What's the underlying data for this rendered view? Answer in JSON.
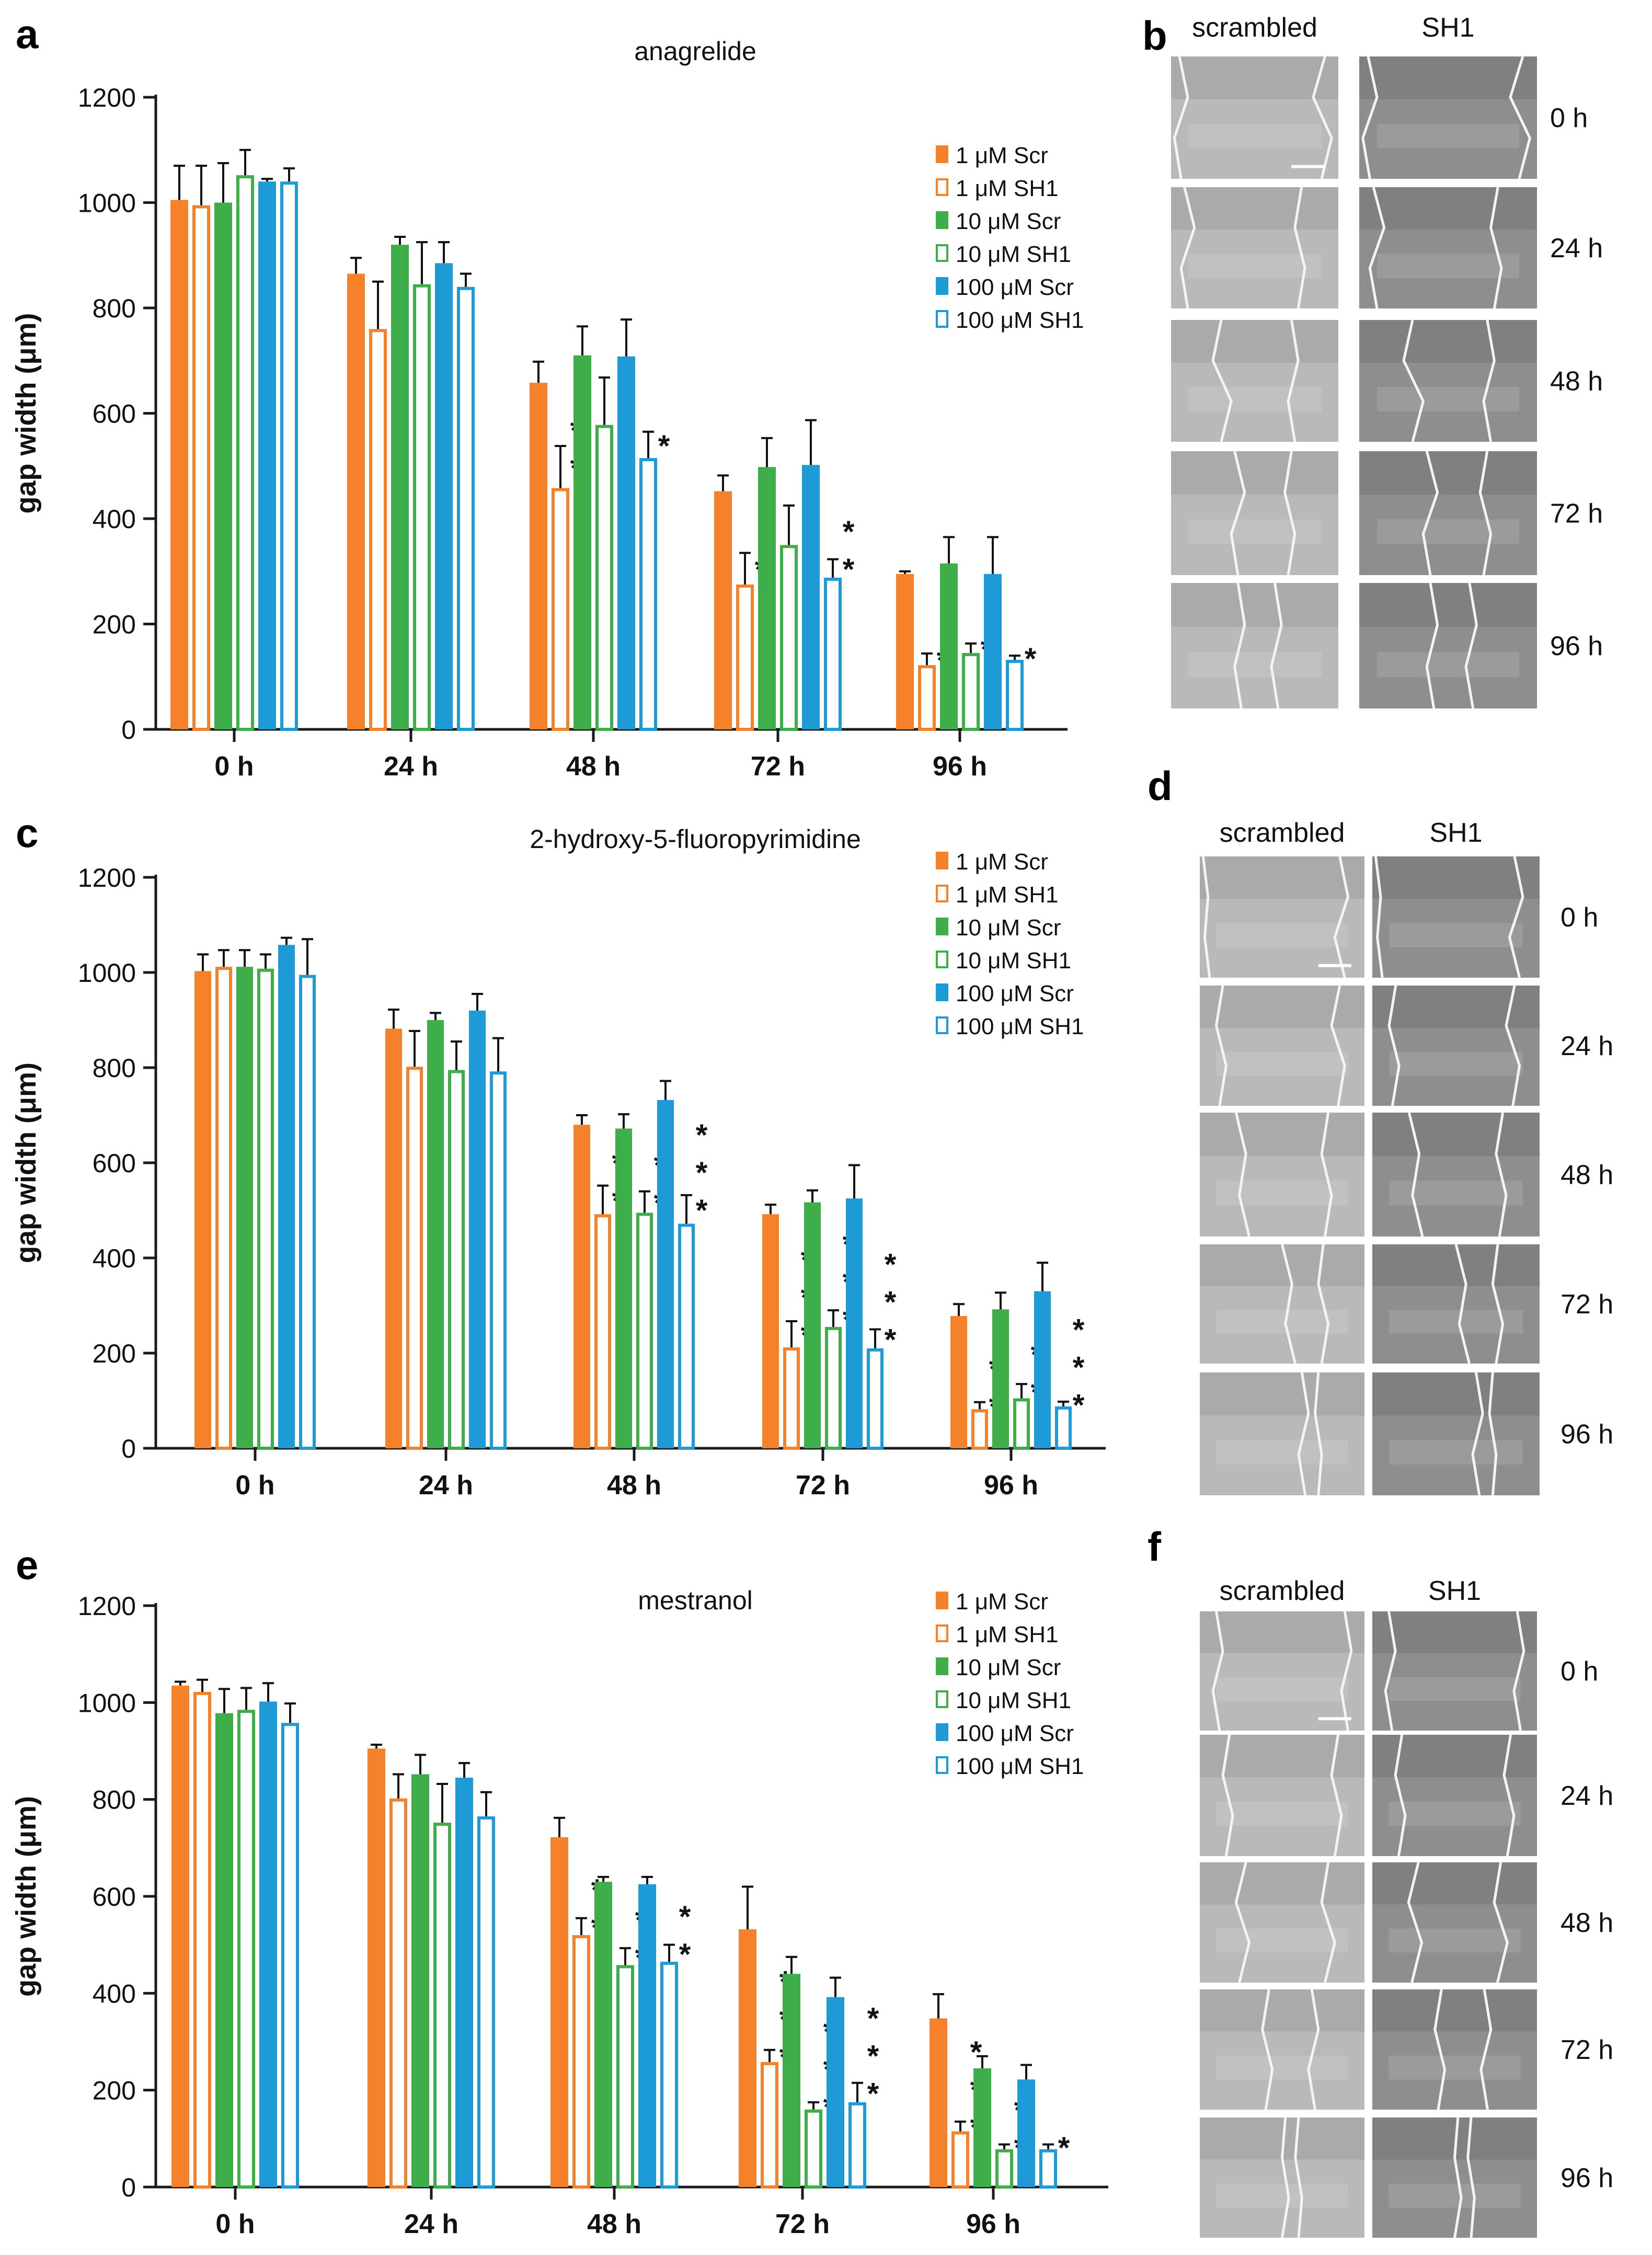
{
  "figure": {
    "panel_labels": [
      "a",
      "b",
      "c",
      "d",
      "e",
      "f"
    ],
    "micrograph_columns": [
      "scrambled",
      "SH1"
    ],
    "micrograph_rows": [
      "0 h",
      "24 h",
      "48 h",
      "72 h",
      "96 h"
    ],
    "colors": {
      "orange": "#F5822A",
      "green": "#3DAE49",
      "blue": "#1E9AD6",
      "axis": "#1a1a1a"
    }
  },
  "chart_data": [
    {
      "type": "bar",
      "panel": "a",
      "title": "anagrelide",
      "xlabel": "",
      "ylabel": "gap width (μm)",
      "ylim": [
        0,
        1200
      ],
      "yticks": [
        0,
        200,
        400,
        600,
        800,
        1000,
        1200
      ],
      "categories": [
        "0 h",
        "24 h",
        "48 h",
        "72 h",
        "96 h"
      ],
      "legend": "top-right",
      "series": [
        {
          "name": "1 μM Scr",
          "color": "orange",
          "filled": true,
          "values": [
            1005,
            865,
            658,
            452,
            295
          ],
          "errors": [
            65,
            30,
            40,
            30,
            5
          ],
          "stars": [
            0,
            0,
            0,
            0,
            0
          ]
        },
        {
          "name": "1 μM SH1",
          "color": "orange",
          "filled": false,
          "values": [
            995,
            760,
            458,
            275,
            122
          ],
          "errors": [
            75,
            90,
            80,
            60,
            22
          ],
          "stars": [
            0,
            0,
            2,
            1,
            1
          ]
        },
        {
          "name": "10 μM Scr",
          "color": "green",
          "filled": true,
          "values": [
            1000,
            920,
            710,
            498,
            315
          ],
          "errors": [
            75,
            15,
            55,
            55,
            50
          ],
          "stars": [
            0,
            0,
            0,
            0,
            0
          ]
        },
        {
          "name": "10 μM SH1",
          "color": "green",
          "filled": false,
          "values": [
            1052,
            845,
            578,
            350,
            145
          ],
          "errors": [
            48,
            80,
            90,
            75,
            18
          ],
          "stars": [
            0,
            0,
            0,
            0,
            1
          ]
        },
        {
          "name": "100 μM Scr",
          "color": "blue",
          "filled": true,
          "values": [
            1040,
            885,
            708,
            502,
            295
          ],
          "errors": [
            5,
            40,
            70,
            85,
            70
          ],
          "stars": [
            0,
            0,
            0,
            0,
            0
          ]
        },
        {
          "name": "100 μM SH1",
          "color": "blue",
          "filled": false,
          "values": [
            1040,
            840,
            515,
            288,
            132
          ],
          "errors": [
            25,
            25,
            50,
            35,
            8
          ],
          "stars": [
            0,
            0,
            1,
            2,
            1
          ]
        }
      ]
    },
    {
      "type": "bar",
      "panel": "c",
      "title": "2-hydroxy-5-fluoropyrimidine",
      "xlabel": "",
      "ylabel": "gap width (μm)",
      "ylim": [
        0,
        1200
      ],
      "yticks": [
        0,
        200,
        400,
        600,
        800,
        1000,
        1200
      ],
      "categories": [
        "0 h",
        "24 h",
        "48 h",
        "72 h",
        "96 h"
      ],
      "legend": "top-right",
      "series": [
        {
          "name": "1 μM Scr",
          "color": "orange",
          "filled": true,
          "values": [
            1003,
            882,
            680,
            492,
            278
          ],
          "errors": [
            35,
            40,
            20,
            20,
            25
          ],
          "stars": [
            0,
            0,
            0,
            0,
            0
          ]
        },
        {
          "name": "1 μM SH1",
          "color": "orange",
          "filled": false,
          "values": [
            1012,
            802,
            492,
            212,
            82
          ],
          "errors": [
            35,
            75,
            60,
            55,
            15
          ],
          "stars": [
            0,
            0,
            2,
            3,
            2
          ]
        },
        {
          "name": "10 μM Scr",
          "color": "green",
          "filled": true,
          "values": [
            1012,
            900,
            672,
            517,
            292
          ],
          "errors": [
            35,
            15,
            30,
            25,
            35
          ],
          "stars": [
            0,
            0,
            0,
            0,
            0
          ]
        },
        {
          "name": "10 μM SH1",
          "color": "green",
          "filled": false,
          "values": [
            1008,
            795,
            495,
            255,
            105
          ],
          "errors": [
            30,
            60,
            45,
            35,
            30
          ],
          "stars": [
            0,
            0,
            2,
            3,
            2
          ]
        },
        {
          "name": "100 μM Scr",
          "color": "blue",
          "filled": true,
          "values": [
            1058,
            920,
            732,
            525,
            330
          ],
          "errors": [
            15,
            35,
            40,
            70,
            60
          ],
          "stars": [
            0,
            0,
            0,
            0,
            0
          ]
        },
        {
          "name": "100 μM SH1",
          "color": "blue",
          "filled": false,
          "values": [
            995,
            792,
            472,
            210,
            88
          ],
          "errors": [
            75,
            70,
            60,
            40,
            10
          ],
          "stars": [
            0,
            0,
            3,
            3,
            3
          ]
        }
      ]
    },
    {
      "type": "bar",
      "panel": "e",
      "title": "mestranol",
      "xlabel": "",
      "ylabel": "gap width (μm)",
      "ylim": [
        0,
        1200
      ],
      "yticks": [
        0,
        200,
        400,
        600,
        800,
        1000,
        1200
      ],
      "categories": [
        "0 h",
        "24 h",
        "48 h",
        "72 h",
        "96 h"
      ],
      "legend": "top-right",
      "series": [
        {
          "name": "1 μM Scr",
          "color": "orange",
          "filled": true,
          "values": [
            1035,
            905,
            722,
            532,
            348
          ],
          "errors": [
            8,
            8,
            40,
            88,
            50
          ],
          "stars": [
            0,
            0,
            0,
            0,
            0
          ]
        },
        {
          "name": "1 μM SH1",
          "color": "orange",
          "filled": false,
          "values": [
            1022,
            802,
            520,
            258,
            115
          ],
          "errors": [
            25,
            50,
            35,
            25,
            20
          ],
          "stars": [
            0,
            0,
            2,
            3,
            3
          ]
        },
        {
          "name": "10 μM Scr",
          "color": "green",
          "filled": true,
          "values": [
            978,
            852,
            630,
            440,
            245
          ],
          "errors": [
            50,
            40,
            10,
            35,
            25
          ],
          "stars": [
            0,
            0,
            0,
            0,
            0
          ]
        },
        {
          "name": "10 μM SH1",
          "color": "green",
          "filled": false,
          "values": [
            985,
            752,
            458,
            160,
            78
          ],
          "errors": [
            45,
            80,
            35,
            15,
            10
          ],
          "stars": [
            0,
            0,
            2,
            3,
            2
          ]
        },
        {
          "name": "100 μM Scr",
          "color": "blue",
          "filled": true,
          "values": [
            1002,
            845,
            625,
            392,
            222
          ],
          "errors": [
            38,
            30,
            15,
            40,
            30
          ],
          "stars": [
            0,
            0,
            0,
            0,
            0
          ]
        },
        {
          "name": "100 μM SH1",
          "color": "blue",
          "filled": false,
          "values": [
            958,
            765,
            465,
            175,
            78
          ],
          "errors": [
            40,
            50,
            35,
            40,
            10
          ],
          "stars": [
            0,
            0,
            2,
            3,
            1
          ]
        }
      ]
    }
  ]
}
